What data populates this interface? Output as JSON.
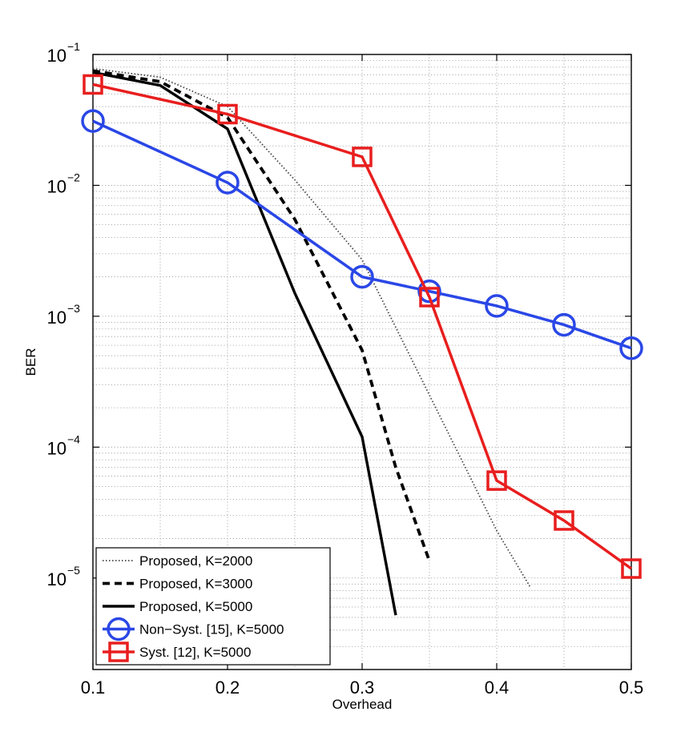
{
  "chart_data": {
    "type": "line",
    "title": "",
    "xlabel": "Overhead",
    "ylabel": "BER",
    "xlim": [
      0.1,
      0.5
    ],
    "ylim": [
      2e-06,
      0.1
    ],
    "y_scale": "log",
    "grid": true,
    "x_ticks": [
      {
        "value": 0.1,
        "label": "0.1"
      },
      {
        "value": 0.2,
        "label": "0.2"
      },
      {
        "value": 0.3,
        "label": "0.3"
      },
      {
        "value": 0.4,
        "label": "0.4"
      },
      {
        "value": 0.5,
        "label": "0.5"
      }
    ],
    "y_ticks": [
      {
        "value": 0.1,
        "base": "10",
        "exp": "−1"
      },
      {
        "value": 0.01,
        "base": "10",
        "exp": "−2"
      },
      {
        "value": 0.001,
        "base": "10",
        "exp": "−3"
      },
      {
        "value": 0.0001,
        "base": "10",
        "exp": "−4"
      },
      {
        "value": 1e-05,
        "base": "10",
        "exp": "−5"
      }
    ],
    "legend_position": "bottom-left",
    "series": [
      {
        "name": "Proposed, K=2000",
        "color": "#444444",
        "style": "dotted",
        "marker": "none",
        "x": [
          0.1,
          0.15,
          0.2,
          0.25,
          0.3,
          0.35,
          0.4,
          0.425
        ],
        "y": [
          0.078,
          0.067,
          0.04,
          0.011,
          0.0027,
          0.00025,
          2.3e-05,
          8.5e-06
        ]
      },
      {
        "name": "Proposed, K=3000",
        "color": "#000000",
        "style": "dashed",
        "marker": "none",
        "x": [
          0.1,
          0.15,
          0.2,
          0.25,
          0.3,
          0.325,
          0.35
        ],
        "y": [
          0.075,
          0.062,
          0.033,
          0.0055,
          0.00055,
          7e-05,
          1.35e-05
        ]
      },
      {
        "name": "Proposed, K=5000",
        "color": "#000000",
        "style": "solid",
        "marker": "none",
        "x": [
          0.1,
          0.15,
          0.2,
          0.25,
          0.3,
          0.325
        ],
        "y": [
          0.073,
          0.058,
          0.027,
          0.0015,
          0.00012,
          5.2e-06
        ]
      },
      {
        "name": "Non−Syst. [15], K=5000",
        "color": "#2a47e6",
        "style": "solid",
        "marker": "circle",
        "x": [
          0.1,
          0.2,
          0.3,
          0.35,
          0.4,
          0.45,
          0.5
        ],
        "y": [
          0.031,
          0.0105,
          0.002,
          0.00155,
          0.0012,
          0.00086,
          0.00057
        ]
      },
      {
        "name": "Syst. [12], K=5000",
        "color": "#e81e1e",
        "style": "solid",
        "marker": "square",
        "x": [
          0.1,
          0.2,
          0.3,
          0.35,
          0.4,
          0.45,
          0.5
        ],
        "y": [
          0.059,
          0.035,
          0.0165,
          0.0014,
          5.55e-05,
          2.75e-05,
          1.18e-05
        ]
      }
    ]
  }
}
